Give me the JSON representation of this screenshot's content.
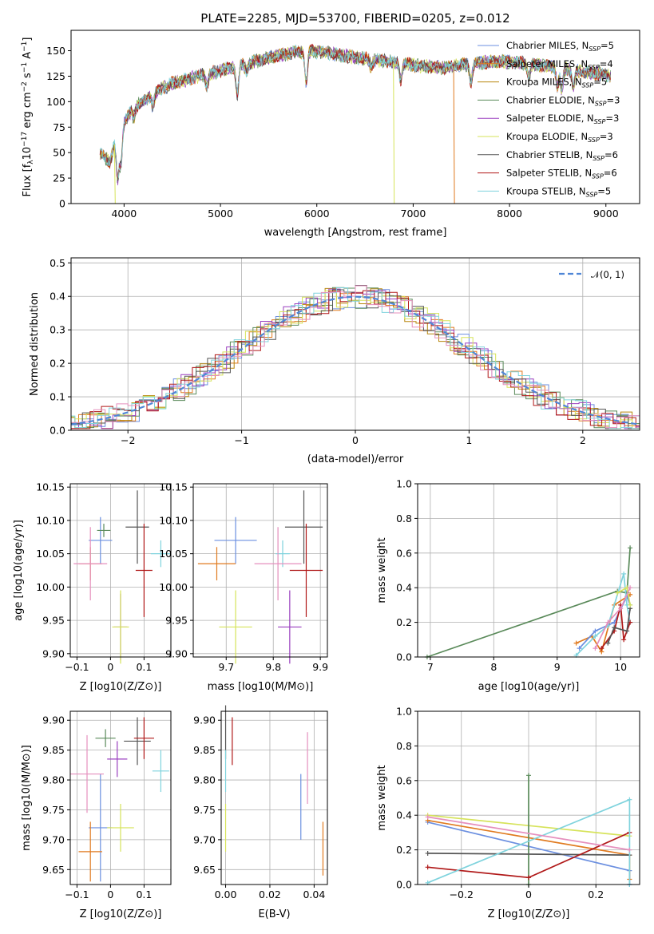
{
  "figure": {
    "title": "PLATE=2285, MJD=53700, FIBERID=0205, z=0.012"
  },
  "models": [
    {
      "name": "Chabrier MILES",
      "nssp": "5",
      "color": "#6b8fe0"
    },
    {
      "name": "Salpeter MILES",
      "nssp": "4",
      "color": "#e07a1f"
    },
    {
      "name": "Kroupa MILES",
      "nssp": "5",
      "color": "#b8860b"
    },
    {
      "name": "Chabrier ELODIE",
      "nssp": "3",
      "color": "#5a8a5a"
    },
    {
      "name": "Salpeter ELODIE",
      "nssp": "3",
      "color": "#9a3fbf"
    },
    {
      "name": "Kroupa ELODIE",
      "nssp": "3",
      "color": "#d6e35a"
    },
    {
      "name": "Chabrier STELIB",
      "nssp": "6",
      "color": "#555555"
    },
    {
      "name": "Salpeter STELIB",
      "nssp": "6",
      "color": "#b01818"
    },
    {
      "name": "Kroupa STELIB",
      "nssp": "5",
      "color": "#7fd3dd"
    }
  ],
  "chart_data": [
    {
      "type": "line",
      "panel": "spectrum",
      "title": "PLATE=2285, MJD=53700, FIBERID=0205, z=0.012",
      "xlabel": "wavelength [Angstrom, rest frame]",
      "ylabel": "Flux [fλ10^-17 erg cm^-2 s^-1 A^-1]",
      "xlim": [
        3450,
        9350
      ],
      "ylim": [
        0,
        170
      ],
      "xticks": [
        4000,
        5000,
        6000,
        7000,
        8000,
        9000
      ],
      "yticks": [
        0,
        25,
        50,
        75,
        100,
        125,
        150
      ],
      "legend": "upper-right",
      "continuum": {
        "x": [
          3750,
          3800,
          3850,
          3900,
          3950,
          4000,
          4100,
          4200,
          4300,
          4500,
          4700,
          4900,
          5100,
          5300,
          5500,
          5700,
          5900,
          6100,
          6300,
          6500,
          6700,
          6900,
          7100,
          7300,
          7500,
          7700,
          7900,
          8100,
          8300,
          8500,
          8700,
          8900,
          9050
        ],
        "y": [
          50,
          45,
          40,
          58,
          72,
          80,
          95,
          100,
          108,
          118,
          123,
          128,
          133,
          138,
          143,
          147,
          150,
          148,
          145,
          142,
          140,
          137,
          135,
          133,
          136,
          138,
          140,
          138,
          136,
          134,
          130,
          128,
          125
        ]
      },
      "dips": [
        {
          "x": 3934,
          "y": 25
        },
        {
          "x": 3968,
          "y": 40
        },
        {
          "x": 4102,
          "y": 85
        },
        {
          "x": 4300,
          "y": 95
        },
        {
          "x": 4861,
          "y": 115
        },
        {
          "x": 5175,
          "y": 108
        },
        {
          "x": 5270,
          "y": 130
        },
        {
          "x": 5890,
          "y": 120
        },
        {
          "x": 6563,
          "y": 135
        },
        {
          "x": 6870,
          "y": 122
        },
        {
          "x": 7600,
          "y": 120
        },
        {
          "x": 8200,
          "y": 125
        },
        {
          "x": 8498,
          "y": 115
        },
        {
          "x": 8542,
          "y": 112
        },
        {
          "x": 8662,
          "y": 114
        }
      ],
      "spikes": [
        {
          "x": 3900,
          "y": 0,
          "model": "Kroupa ELODIE"
        },
        {
          "x": 6795,
          "y": 0,
          "model": "Kroupa ELODIE"
        },
        {
          "x": 7420,
          "y": 0,
          "model": "Salpeter MILES"
        }
      ]
    },
    {
      "type": "line",
      "panel": "residuals",
      "xlabel": "(data-model)/error",
      "ylabel": "Normed distribution",
      "xlim": [
        -2.5,
        2.5
      ],
      "ylim": [
        0,
        0.515
      ],
      "xticks": [
        -2,
        -1,
        0,
        1,
        2
      ],
      "yticks": [
        0.0,
        0.1,
        0.2,
        0.3,
        0.4,
        0.5
      ],
      "grid": true,
      "legend": "upper-right",
      "reference": {
        "label": "𝒩(0, 1)",
        "color": "#4f86d6",
        "mu": 0,
        "sigma": 1
      },
      "histograms": "step histograms of normalized residuals, one per model, closely following N(0,1)"
    },
    {
      "type": "scatter",
      "panel": "age-Z",
      "xlabel": "Z [log10(Z/Z⊙)]",
      "ylabel": "age [log10(age/yr)]",
      "xlim": [
        -0.12,
        0.18
      ],
      "ylim": [
        9.895,
        10.155
      ],
      "xticks": [
        -0.1,
        0.0,
        0.1
      ],
      "yticks": [
        9.9,
        9.95,
        10.0,
        10.05,
        10.1,
        10.15
      ],
      "grid": true,
      "points": [
        {
          "model": "Chabrier MILES",
          "x": -0.03,
          "xerr": 0.035,
          "y": 10.07,
          "yerr": 0.035
        },
        {
          "model": "Salpeter MILES",
          "x": -0.06,
          "xerr": 0.035,
          "y": 10.035,
          "yerr": 0.025
        },
        {
          "model": "Chabrier ELODIE",
          "x": -0.02,
          "xerr": 0.02,
          "y": 10.085,
          "yerr": 0.01
        },
        {
          "model": "Salpeter ELODIE",
          "x": 0.03,
          "xerr": 0.02,
          "y": 9.94,
          "yerr": 0.05
        },
        {
          "model": "Kroupa ELODIE",
          "x": 0.03,
          "xerr": 0.025,
          "y": 9.94,
          "yerr": 0.055
        },
        {
          "model": "Chabrier STELIB",
          "x": 0.08,
          "xerr": 0.035,
          "y": 10.09,
          "yerr": 0.055
        },
        {
          "model": "Salpeter STELIB",
          "x": 0.1,
          "xerr": 0.025,
          "y": 10.025,
          "yerr": 0.07
        },
        {
          "model": "Kroupa STELIB",
          "x": 0.15,
          "xerr": 0.03,
          "y": 10.05,
          "yerr": 0.02
        },
        {
          "model": "Chabrier MILES",
          "x": -0.06,
          "xerr": 0.05,
          "y": 10.035,
          "yerr": 0.055,
          "color": "#e58fbd"
        }
      ]
    },
    {
      "type": "scatter",
      "panel": "age-mass",
      "xlabel": "mass [log10(M/M⊙)]",
      "xlim": [
        9.63,
        9.915
      ],
      "ylim": [
        9.895,
        10.155
      ],
      "xticks": [
        9.7,
        9.8,
        9.9
      ],
      "yticks": [
        9.9,
        9.95,
        10.0,
        10.05,
        10.1,
        10.15
      ],
      "grid": true,
      "points": [
        {
          "model": "Chabrier MILES",
          "x": 9.72,
          "xerr": 0.045,
          "y": 10.07,
          "yerr": 0.035
        },
        {
          "model": "Salpeter MILES",
          "x": 9.68,
          "xerr": 0.04,
          "y": 10.035,
          "yerr": 0.025
        },
        {
          "model": "Kroupa ELODIE",
          "x": 9.72,
          "xerr": 0.035,
          "y": 9.94,
          "yerr": 0.055
        },
        {
          "model": "Salpeter ELODIE",
          "x": 9.835,
          "xerr": 0.025,
          "y": 9.94,
          "yerr": 0.055
        },
        {
          "model": "Chabrier STELIB",
          "x": 9.865,
          "xerr": 0.04,
          "y": 10.09,
          "yerr": 0.055
        },
        {
          "model": "Salpeter STELIB",
          "x": 9.87,
          "xerr": 0.035,
          "y": 10.025,
          "yerr": 0.07
        },
        {
          "model": "Kroupa STELIB",
          "x": 9.82,
          "xerr": 0.015,
          "y": 10.05,
          "yerr": 0.02
        },
        {
          "model": "Chabrier MILES",
          "x": 9.81,
          "xerr": 0.05,
          "y": 10.035,
          "yerr": 0.055,
          "color": "#e58fbd"
        }
      ]
    },
    {
      "type": "line",
      "panel": "weights-age",
      "xlabel": "age  [log10(age/yr)]",
      "ylabel": "mass weight",
      "xlim": [
        6.8,
        10.3
      ],
      "ylim": [
        0,
        1.0
      ],
      "xticks": [
        7,
        8,
        9,
        10
      ],
      "yticks": [
        0.0,
        0.2,
        0.4,
        0.6,
        0.8,
        1.0
      ],
      "grid": true,
      "series": [
        {
          "model": "Chabrier ELODIE",
          "x": [
            6.95,
            9.95,
            10.1,
            10.15
          ],
          "y": [
            0.0,
            0.38,
            0.37,
            0.63
          ]
        },
        {
          "model": "Salpeter MILES",
          "x": [
            9.3,
            9.55,
            9.7,
            9.9,
            10.15
          ],
          "y": [
            0.08,
            0.12,
            0.03,
            0.3,
            0.36
          ]
        },
        {
          "model": "Chabrier MILES",
          "x": [
            9.35,
            9.6,
            9.9,
            10.1,
            10.15
          ],
          "y": [
            0.05,
            0.15,
            0.2,
            0.35,
            0.3
          ]
        },
        {
          "model": "Kroupa STELIB",
          "x": [
            9.3,
            9.6,
            9.8,
            10.05,
            10.1,
            10.15
          ],
          "y": [
            0.01,
            0.12,
            0.18,
            0.48,
            0.3,
            0.2
          ]
        },
        {
          "model": "Salpeter STELIB",
          "x": [
            9.7,
            9.9,
            10.0,
            10.05,
            10.15
          ],
          "y": [
            0.05,
            0.15,
            0.3,
            0.1,
            0.2
          ]
        },
        {
          "model": "Chabrier STELIB",
          "x": [
            9.8,
            9.9,
            10.1,
            10.15
          ],
          "y": [
            0.08,
            0.17,
            0.15,
            0.28
          ]
        },
        {
          "model": "Kroupa ELODIE",
          "x": [
            9.95,
            10.1,
            10.15
          ],
          "y": [
            0.37,
            0.4,
            0.3
          ]
        },
        {
          "model": "Chabrier MILES",
          "x": [
            9.6,
            9.8,
            10.0,
            10.15
          ],
          "y": [
            0.05,
            0.2,
            0.28,
            0.4
          ],
          "color": "#e58fbd"
        }
      ]
    },
    {
      "type": "scatter",
      "panel": "mass-Z",
      "xlabel": "Z [log10(Z/Z⊙)]",
      "ylabel": "mass [log10(M/M⊙)]",
      "xlim": [
        -0.12,
        0.18
      ],
      "ylim": [
        9.625,
        9.915
      ],
      "xticks": [
        -0.1,
        0.0,
        0.1
      ],
      "yticks": [
        9.65,
        9.7,
        9.75,
        9.8,
        9.85,
        9.9
      ],
      "grid": true,
      "points": [
        {
          "model": "Chabrier MILES",
          "x": -0.03,
          "xerr": 0.035,
          "y": 9.72,
          "yerr": 0.09
        },
        {
          "model": "Salpeter MILES",
          "x": -0.06,
          "xerr": 0.035,
          "y": 9.68,
          "yerr": 0.05
        },
        {
          "model": "Kroupa ELODIE",
          "x": 0.03,
          "xerr": 0.04,
          "y": 9.72,
          "yerr": 0.04
        },
        {
          "model": "Chabrier ELODIE",
          "x": -0.015,
          "xerr": 0.03,
          "y": 9.87,
          "yerr": 0.015
        },
        {
          "model": "Salpeter ELODIE",
          "x": 0.02,
          "xerr": 0.03,
          "y": 9.835,
          "yerr": 0.03
        },
        {
          "model": "Chabrier STELIB",
          "x": 0.08,
          "xerr": 0.04,
          "y": 9.865,
          "yerr": 0.04
        },
        {
          "model": "Salpeter STELIB",
          "x": 0.1,
          "xerr": 0.03,
          "y": 9.87,
          "yerr": 0.035
        },
        {
          "model": "Kroupa STELIB",
          "x": 0.15,
          "xerr": 0.025,
          "y": 9.815,
          "yerr": 0.035
        },
        {
          "model": "Chabrier MILES",
          "x": -0.07,
          "xerr": 0.05,
          "y": 9.81,
          "yerr": 0.065,
          "color": "#e58fbd"
        }
      ]
    },
    {
      "type": "scatter",
      "panel": "mass-EBV",
      "xlabel": "E(B-V)",
      "xlim": [
        -0.002,
        0.046
      ],
      "ylim": [
        9.625,
        9.915
      ],
      "xticks": [
        0.0,
        0.02,
        0.04
      ],
      "yticks": [
        9.65,
        9.7,
        9.75,
        9.8,
        9.85,
        9.9
      ],
      "grid": true,
      "points": [
        {
          "model": "Chabrier STELIB",
          "x": 0.0,
          "y": 9.88,
          "yerr": 0.045
        },
        {
          "model": "Salpeter STELIB",
          "x": 0.003,
          "y": 9.865,
          "yerr": 0.04
        },
        {
          "model": "Kroupa STELIB",
          "x": 0.0,
          "y": 9.815,
          "yerr": 0.035
        },
        {
          "model": "Kroupa ELODIE",
          "x": 0.0,
          "y": 9.72,
          "yerr": 0.04
        },
        {
          "model": "Chabrier MILES",
          "x": 0.034,
          "y": 9.755,
          "yerr": 0.055
        },
        {
          "model": "Chabrier MILES",
          "x": 0.037,
          "y": 9.82,
          "yerr": 0.06,
          "color": "#e58fbd"
        },
        {
          "model": "Salpeter MILES",
          "x": 0.044,
          "y": 9.685,
          "yerr": 0.045
        }
      ]
    },
    {
      "type": "line",
      "panel": "weights-Z",
      "xlabel": "Z [log10(Z/Z⊙)]",
      "ylabel": "mass weight",
      "xlim": [
        -0.33,
        0.33
      ],
      "ylim": [
        0,
        1.0
      ],
      "xticks": [
        -0.2,
        0.0,
        0.2
      ],
      "yticks": [
        0.0,
        0.2,
        0.4,
        0.6,
        0.8,
        1.0
      ],
      "grid": true,
      "series": [
        {
          "model": "Chabrier MILES",
          "x": [
            -0.3,
            0.3,
            0.3
          ],
          "y": [
            0.36,
            0.08,
            0.0
          ]
        },
        {
          "model": "Salpeter MILES",
          "x": [
            -0.3,
            0.3,
            0.3
          ],
          "y": [
            0.37,
            0.17,
            0.03
          ]
        },
        {
          "model": "Kroupa ELODIE",
          "x": [
            -0.3,
            0.3
          ],
          "y": [
            0.4,
            0.28
          ]
        },
        {
          "model": "Chabrier ELODIE",
          "x": [
            0.0,
            0.0
          ],
          "y": [
            0.0,
            0.63
          ]
        },
        {
          "model": "Chabrier STELIB",
          "x": [
            -0.3,
            0.3
          ],
          "y": [
            0.18,
            0.17
          ]
        },
        {
          "model": "Salpeter STELIB",
          "x": [
            -0.3,
            0.0,
            0.3
          ],
          "y": [
            0.1,
            0.04,
            0.3
          ]
        },
        {
          "model": "Kroupa STELIB",
          "x": [
            -0.3,
            0.3,
            0.3
          ],
          "y": [
            0.01,
            0.49,
            0.0
          ]
        },
        {
          "model": "Chabrier MILES",
          "x": [
            -0.3,
            0.3
          ],
          "y": [
            0.39,
            0.2
          ],
          "color": "#e58fbd"
        }
      ]
    }
  ]
}
